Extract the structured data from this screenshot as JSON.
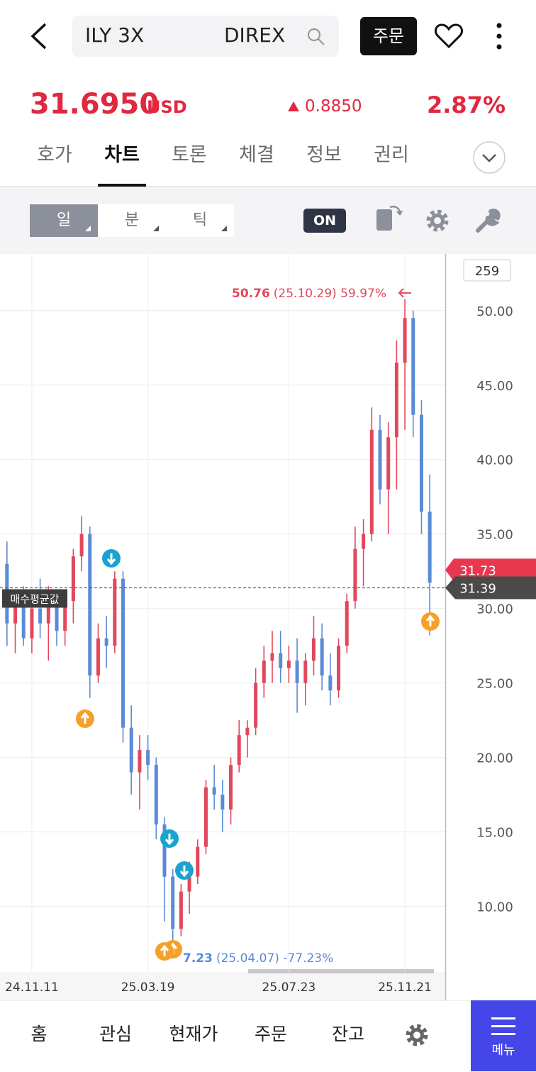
{
  "header": {
    "search_text_left": "ILY 3X",
    "search_text_right": "DIREX",
    "order_button": "주문"
  },
  "quote": {
    "price": "31.6950",
    "currency": "USD",
    "change": "0.8850",
    "change_percent": "2.87%"
  },
  "tabs": [
    "호가",
    "차트",
    "토론",
    "체결",
    "정보",
    "권리"
  ],
  "selected_tab": "차트",
  "toolbar": {
    "periods": [
      "일",
      "분",
      "틱"
    ],
    "selected_period": "일",
    "toggle": "ON"
  },
  "chart_data": {
    "type": "candlestick",
    "categories": [
      null,
      null,
      null,
      "24.11.11",
      null,
      null,
      null,
      null,
      null,
      null,
      null,
      null,
      null,
      null,
      null,
      null,
      null,
      "25.03.19",
      null,
      null,
      null,
      null,
      null,
      null,
      null,
      null,
      null,
      null,
      null,
      null,
      null,
      null,
      null,
      null,
      "25.07.23",
      null,
      null,
      null,
      null,
      null,
      null,
      null,
      null,
      null,
      null,
      null,
      null,
      null,
      "25.11.21",
      null,
      null,
      null
    ],
    "open": [
      33,
      29,
      30.5,
      28,
      30,
      29,
      30.5,
      28.5,
      30.5,
      33.5,
      35,
      25.5,
      28,
      27.5,
      32,
      22,
      19,
      20.5,
      19.5,
      15.5,
      12,
      8.5,
      11,
      12,
      14,
      18,
      17.5,
      16.5,
      19.5,
      21.5,
      22,
      25,
      26.5,
      27,
      26,
      26.5,
      25,
      26.5,
      28,
      25.5,
      24.5,
      27.5,
      30.5,
      34,
      35,
      42,
      38,
      41.5,
      46.5,
      49.5,
      43,
      36.5
    ],
    "high": [
      34.5,
      31,
      31.5,
      30.5,
      32,
      31.5,
      31,
      31,
      34,
      36.2,
      35.5,
      29,
      29.5,
      32.5,
      32.5,
      23.5,
      21.5,
      21.5,
      20,
      16,
      12.5,
      11.5,
      13,
      14.5,
      18.5,
      19.5,
      18.5,
      20,
      22.5,
      22.5,
      26,
      27.5,
      28.5,
      28.5,
      27.5,
      28,
      27,
      29.5,
      29,
      27,
      28,
      31,
      35.5,
      36,
      43.5,
      43,
      42.5,
      48,
      50.76,
      50,
      44,
      39
    ],
    "low": [
      27.5,
      27,
      27.5,
      27,
      28,
      26.5,
      27.5,
      27.5,
      29,
      32.5,
      24,
      25,
      26,
      27,
      21,
      17.5,
      16.5,
      18.5,
      14.5,
      9,
      7.23,
      8,
      9.5,
      11.5,
      13.5,
      16.5,
      15,
      15.5,
      19,
      20,
      21.5,
      24,
      25,
      25,
      25,
      23,
      23.5,
      25.5,
      24.5,
      23.5,
      24,
      27,
      30,
      31.5,
      34.5,
      37,
      35,
      38,
      42,
      41.5,
      35,
      28.2
    ],
    "close": [
      29,
      30.5,
      28,
      30,
      29,
      30.5,
      28.5,
      30.5,
      33.5,
      35,
      25.5,
      28,
      27.5,
      32,
      22,
      19,
      20.5,
      19.5,
      15.5,
      12,
      8.5,
      11,
      12,
      14,
      18,
      17.5,
      16.5,
      19.5,
      21.5,
      22,
      25,
      26.5,
      27,
      26,
      26.5,
      25,
      26.5,
      28,
      25.5,
      24.5,
      27.5,
      30.5,
      34,
      35,
      42,
      38,
      41.5,
      46.5,
      49.5,
      43,
      36.5,
      31.73
    ],
    "up_color": "#e2485b",
    "down_color": "#5a8bd5",
    "ylim": [
      5.6,
      53.8
    ],
    "yticks": [
      {
        "value": 10,
        "label": "10.00"
      },
      {
        "value": 15,
        "label": "15.00"
      },
      {
        "value": 20,
        "label": "20.00"
      },
      {
        "value": 25,
        "label": "25.00"
      },
      {
        "value": 30,
        "label": "30.00"
      },
      {
        "value": 35,
        "label": "35.00"
      },
      {
        "value": 40,
        "label": "40.00"
      },
      {
        "value": 45,
        "label": "45.00"
      },
      {
        "value": 50,
        "label": "50.00"
      }
    ],
    "grid": true,
    "visible_count": 259,
    "average_price_label": "매수평균값",
    "average_price": 31.39,
    "last_price": 31.73,
    "high_annotation": {
      "value": 50.76,
      "detail": "(25.10.29) 59.97%"
    },
    "low_annotation": {
      "value": 7.23,
      "detail": "(25.04.07) -77.23%"
    }
  },
  "bottom_nav": [
    "홈",
    "관심",
    "현재가",
    "주문",
    "잔고"
  ],
  "menu": "메뉴"
}
